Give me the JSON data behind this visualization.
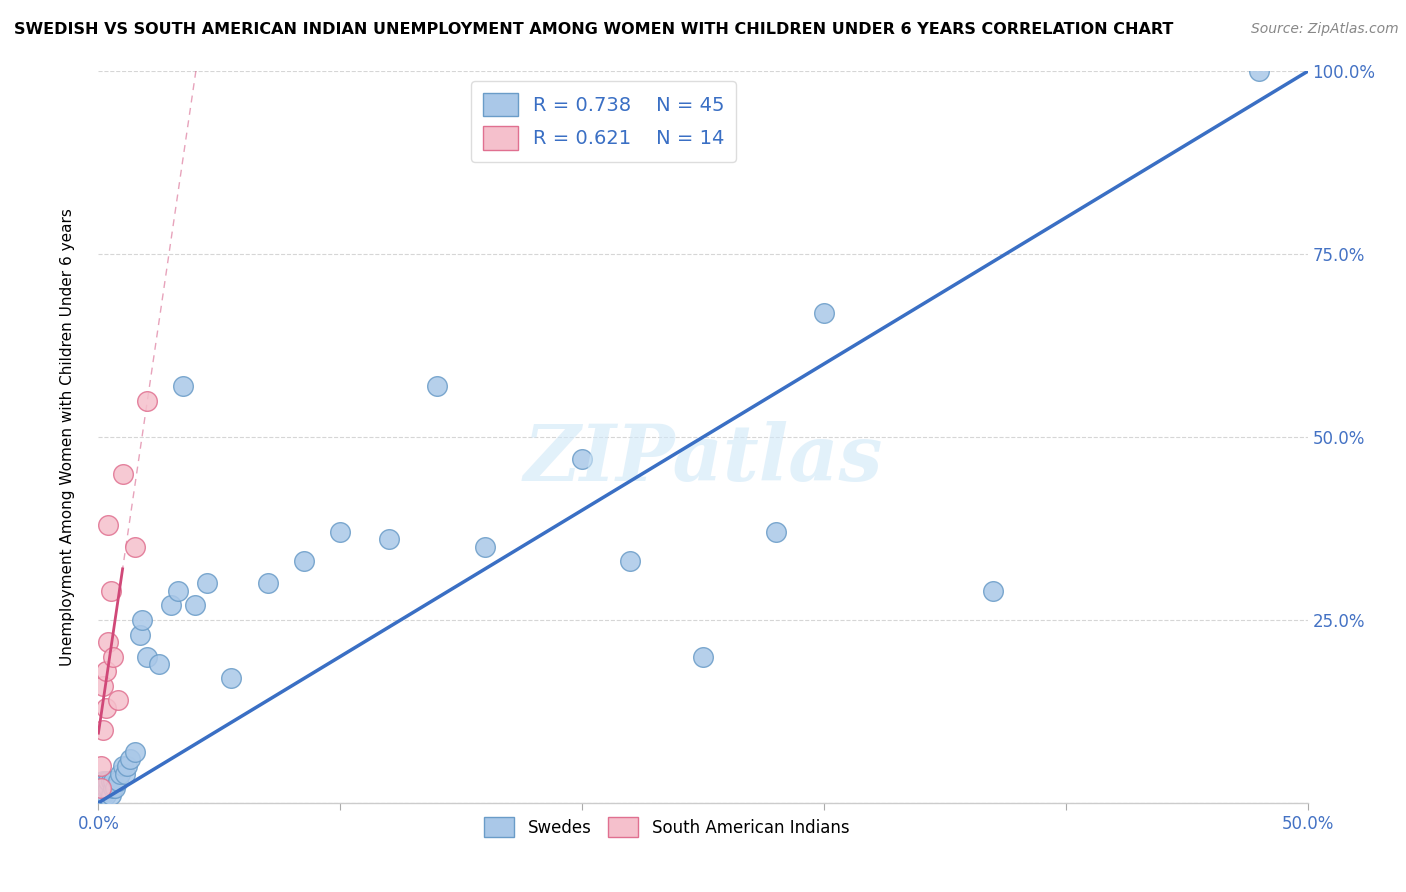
{
  "title": "SWEDISH VS SOUTH AMERICAN INDIAN UNEMPLOYMENT AMONG WOMEN WITH CHILDREN UNDER 6 YEARS CORRELATION CHART",
  "source": "Source: ZipAtlas.com",
  "ylabel": "Unemployment Among Women with Children Under 6 years",
  "xlim": [
    0,
    0.5
  ],
  "ylim": [
    0,
    1.0
  ],
  "xtick_positions": [
    0.0,
    0.1,
    0.2,
    0.3,
    0.4,
    0.5
  ],
  "xtick_labels": [
    "0.0%",
    "",
    "",
    "",
    "",
    "50.0%"
  ],
  "ytick_positions": [
    0.0,
    0.25,
    0.5,
    0.75,
    1.0
  ],
  "ytick_labels_right": [
    "",
    "25.0%",
    "50.0%",
    "75.0%",
    "100.0%"
  ],
  "swedes_color": "#aac8e8",
  "swedes_edge_color": "#6a9cc8",
  "sa_indian_color": "#f5c0cc",
  "sa_indian_edge_color": "#e07090",
  "regression_blue": "#3a6fc4",
  "regression_pink": "#d04878",
  "R_swedes": 0.738,
  "N_swedes": 45,
  "R_sa": 0.621,
  "N_sa": 14,
  "watermark": "ZIPatlas",
  "legend_label_swedes": "Swedes",
  "legend_label_sa": "South American Indians",
  "swedes_x": [
    0.001,
    0.001,
    0.002,
    0.002,
    0.002,
    0.003,
    0.003,
    0.003,
    0.004,
    0.004,
    0.005,
    0.005,
    0.006,
    0.006,
    0.007,
    0.008,
    0.009,
    0.01,
    0.011,
    0.012,
    0.013,
    0.015,
    0.017,
    0.018,
    0.02,
    0.025,
    0.03,
    0.033,
    0.035,
    0.04,
    0.045,
    0.055,
    0.07,
    0.085,
    0.1,
    0.12,
    0.14,
    0.16,
    0.2,
    0.22,
    0.25,
    0.28,
    0.3,
    0.37,
    0.48
  ],
  "swedes_y": [
    0.01,
    0.02,
    0.01,
    0.02,
    0.03,
    0.01,
    0.02,
    0.03,
    0.02,
    0.03,
    0.01,
    0.03,
    0.02,
    0.03,
    0.02,
    0.03,
    0.04,
    0.05,
    0.04,
    0.05,
    0.06,
    0.07,
    0.23,
    0.25,
    0.2,
    0.19,
    0.27,
    0.29,
    0.57,
    0.27,
    0.3,
    0.17,
    0.3,
    0.33,
    0.37,
    0.36,
    0.57,
    0.35,
    0.47,
    0.33,
    0.2,
    0.37,
    0.67,
    0.29,
    1.0
  ],
  "sa_x": [
    0.001,
    0.001,
    0.002,
    0.002,
    0.003,
    0.003,
    0.004,
    0.004,
    0.005,
    0.006,
    0.008,
    0.01,
    0.015,
    0.02
  ],
  "sa_y": [
    0.02,
    0.05,
    0.1,
    0.16,
    0.13,
    0.18,
    0.22,
    0.38,
    0.29,
    0.2,
    0.14,
    0.45,
    0.35,
    0.55
  ]
}
